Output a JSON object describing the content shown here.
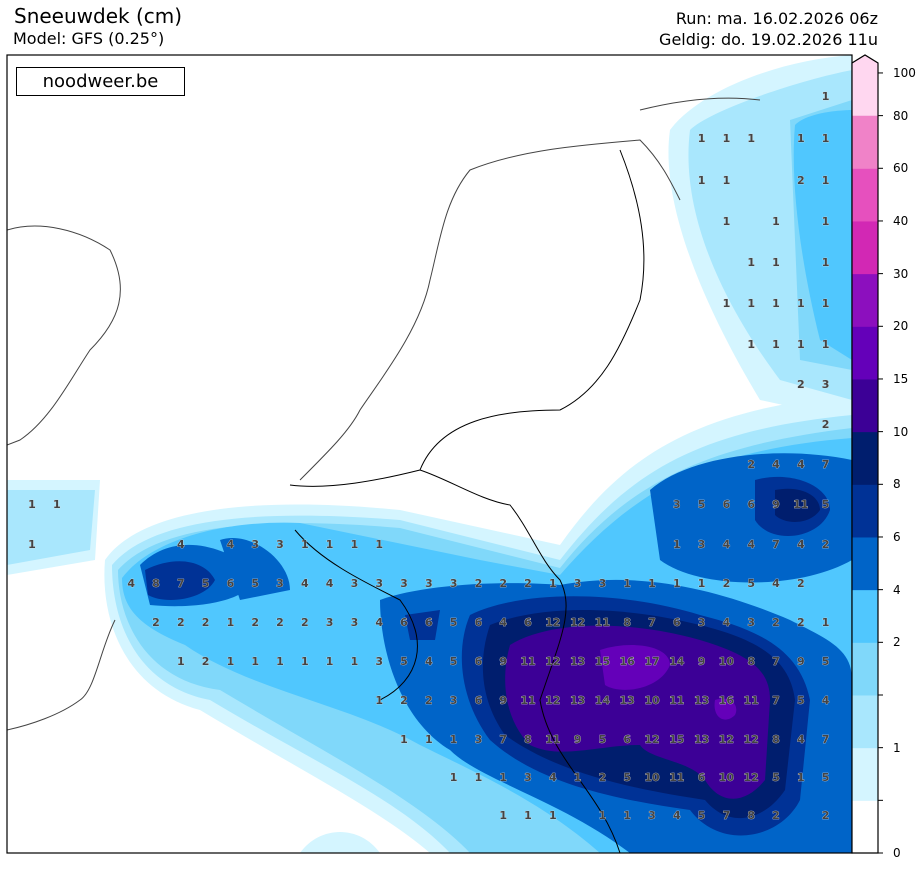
{
  "header": {
    "title": "Sneeuwdek (cm)",
    "model": "Model: GFS (0.25°)",
    "run": "Run: ma. 16.02.2026 06z",
    "valid": "Geldig: do. 19.02.2026 11u"
  },
  "logo": "noodweer.be",
  "colorbar": {
    "labels": [
      "0",
      "",
      "1",
      "",
      "2",
      "4",
      "6",
      "8",
      "10",
      "15",
      "20",
      "30",
      "40",
      "60",
      "80",
      "100"
    ],
    "colors": [
      "#ffffff",
      "#d4f5ff",
      "#a9e7fd",
      "#80d8fa",
      "#50c7fe",
      "#0064c8",
      "#003296",
      "#001e6e",
      "#3c0096",
      "#6400b9",
      "#8c0fbe",
      "#d228b4",
      "#e650be",
      "#f082c8",
      "#ffd7f0"
    ]
  },
  "grid_values": [
    [
      null,
      null,
      null,
      null,
      null,
      null,
      null,
      null,
      null,
      null,
      null,
      null,
      null,
      null,
      null,
      null,
      null,
      null,
      null,
      null,
      null,
      null,
      null,
      null,
      null,
      null,
      null,
      null,
      null,
      null,
      null,
      null,
      1
    ],
    [
      null,
      null,
      null,
      null,
      null,
      null,
      null,
      null,
      null,
      null,
      null,
      null,
      null,
      null,
      null,
      null,
      null,
      null,
      null,
      null,
      null,
      null,
      null,
      null,
      null,
      null,
      null,
      1,
      1,
      1,
      null,
      1,
      1
    ],
    [
      null,
      null,
      null,
      null,
      null,
      null,
      null,
      null,
      null,
      null,
      null,
      null,
      null,
      null,
      null,
      null,
      null,
      null,
      null,
      null,
      null,
      null,
      null,
      null,
      null,
      null,
      null,
      1,
      1,
      null,
      null,
      2,
      1
    ],
    [
      null,
      null,
      null,
      null,
      null,
      null,
      null,
      null,
      null,
      null,
      null,
      null,
      null,
      null,
      null,
      null,
      null,
      null,
      null,
      null,
      null,
      null,
      null,
      null,
      null,
      null,
      null,
      null,
      1,
      null,
      1,
      null,
      1
    ],
    [
      null,
      null,
      null,
      null,
      null,
      null,
      null,
      null,
      null,
      null,
      null,
      null,
      null,
      null,
      null,
      null,
      null,
      null,
      null,
      null,
      null,
      null,
      null,
      null,
      null,
      null,
      null,
      null,
      null,
      1,
      1,
      null,
      1
    ],
    [
      null,
      null,
      null,
      null,
      null,
      null,
      null,
      null,
      null,
      null,
      null,
      null,
      null,
      null,
      null,
      null,
      null,
      null,
      null,
      null,
      null,
      null,
      null,
      null,
      null,
      null,
      null,
      null,
      1,
      1,
      1,
      1,
      1
    ],
    [
      null,
      null,
      null,
      null,
      null,
      null,
      null,
      null,
      null,
      null,
      null,
      null,
      null,
      null,
      null,
      null,
      null,
      null,
      null,
      null,
      null,
      null,
      null,
      null,
      null,
      null,
      null,
      null,
      null,
      1,
      1,
      1,
      1
    ],
    [
      null,
      null,
      null,
      null,
      null,
      null,
      null,
      null,
      null,
      null,
      null,
      null,
      null,
      null,
      null,
      null,
      null,
      null,
      null,
      null,
      null,
      null,
      null,
      null,
      null,
      null,
      null,
      null,
      null,
      null,
      null,
      2,
      3
    ],
    [
      null,
      null,
      null,
      null,
      null,
      null,
      null,
      null,
      null,
      null,
      null,
      null,
      null,
      null,
      null,
      null,
      null,
      null,
      null,
      null,
      null,
      null,
      null,
      null,
      null,
      null,
      null,
      null,
      null,
      null,
      null,
      null,
      2
    ],
    [
      null,
      null,
      null,
      null,
      null,
      null,
      null,
      null,
      null,
      null,
      null,
      null,
      null,
      null,
      null,
      null,
      null,
      null,
      null,
      null,
      null,
      null,
      null,
      null,
      null,
      null,
      null,
      null,
      null,
      2,
      4,
      4,
      7
    ],
    [
      1,
      1,
      null,
      null,
      null,
      null,
      null,
      null,
      null,
      null,
      null,
      null,
      null,
      null,
      null,
      null,
      null,
      null,
      null,
      null,
      null,
      null,
      null,
      null,
      null,
      null,
      3,
      5,
      6,
      6,
      9,
      11,
      5
    ],
    [
      1,
      null,
      null,
      null,
      null,
      null,
      4,
      null,
      4,
      3,
      3,
      1,
      1,
      1,
      1,
      null,
      null,
      null,
      null,
      null,
      null,
      null,
      null,
      null,
      null,
      null,
      1,
      3,
      4,
      4,
      7,
      4,
      2
    ],
    [
      null,
      null,
      null,
      null,
      4,
      8,
      7,
      5,
      6,
      5,
      3,
      4,
      4,
      3,
      3,
      3,
      3,
      3,
      2,
      2,
      2,
      1,
      3,
      3,
      1,
      1,
      1,
      1,
      2,
      5,
      4,
      2,
      null
    ],
    [
      null,
      null,
      null,
      null,
      null,
      2,
      2,
      2,
      1,
      2,
      2,
      2,
      3,
      3,
      4,
      6,
      6,
      5,
      6,
      4,
      6,
      12,
      12,
      11,
      8,
      7,
      6,
      3,
      4,
      3,
      2,
      2,
      1
    ],
    [
      null,
      null,
      null,
      null,
      null,
      null,
      1,
      2,
      1,
      1,
      1,
      1,
      1,
      1,
      3,
      5,
      4,
      5,
      6,
      9,
      11,
      12,
      13,
      15,
      16,
      17,
      14,
      9,
      10,
      8,
      7,
      9,
      5
    ],
    [
      null,
      null,
      null,
      null,
      null,
      null,
      null,
      null,
      null,
      null,
      null,
      null,
      null,
      null,
      1,
      2,
      2,
      3,
      6,
      9,
      11,
      12,
      13,
      14,
      13,
      10,
      11,
      13,
      16,
      11,
      7,
      5,
      4
    ],
    [
      null,
      null,
      null,
      null,
      null,
      null,
      null,
      null,
      null,
      null,
      null,
      null,
      null,
      null,
      null,
      1,
      1,
      1,
      3,
      7,
      8,
      11,
      9,
      5,
      6,
      12,
      15,
      13,
      12,
      12,
      8,
      4,
      7
    ],
    [
      null,
      null,
      null,
      null,
      null,
      null,
      null,
      null,
      null,
      null,
      null,
      null,
      null,
      null,
      null,
      null,
      null,
      1,
      1,
      1,
      3,
      4,
      1,
      2,
      5,
      10,
      11,
      6,
      10,
      12,
      5,
      1,
      5
    ],
    [
      null,
      null,
      null,
      null,
      null,
      null,
      null,
      null,
      null,
      null,
      null,
      null,
      null,
      null,
      null,
      null,
      null,
      null,
      null,
      1,
      1,
      1,
      null,
      1,
      1,
      3,
      4,
      5,
      7,
      8,
      2,
      null,
      2
    ]
  ]
}
